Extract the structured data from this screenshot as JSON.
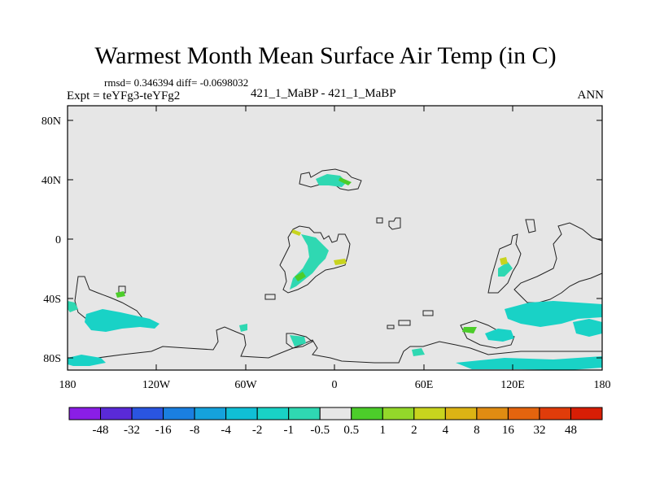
{
  "title": "Warmest Month Mean Surface Air Temp (in C)",
  "stats_text": "rmsd= 0.346394 diff= -0.0698032",
  "left_label": "Expt = teYFg3-teYFg2",
  "center_label": "421_1_MaBP - 421_1_MaBP",
  "right_label": "ANN",
  "map": {
    "lat_ticks": [
      "80N",
      "40N",
      "0",
      "40S",
      "80S"
    ],
    "lon_ticks": [
      "180",
      "120W",
      "60W",
      "0",
      "60E",
      "120E",
      "180"
    ],
    "background_color": "#e6e6e6"
  },
  "colorbar": {
    "labels": [
      "-48",
      "-32",
      "-16",
      "-8",
      "-4",
      "-2",
      "-1",
      "-0.5",
      "0.5",
      "1",
      "2",
      "4",
      "8",
      "16",
      "32",
      "48"
    ],
    "colors": [
      "#8a1ee6",
      "#5a2ad8",
      "#2a55e0",
      "#1a7fe0",
      "#15a2dc",
      "#10bfd6",
      "#19d2c6",
      "#2fd8b2",
      "#e6e6e6",
      "#4ccd2a",
      "#93d82a",
      "#c8d41e",
      "#dcb414",
      "#e08c12",
      "#e4640e",
      "#e03c0a",
      "#d81e05"
    ]
  }
}
